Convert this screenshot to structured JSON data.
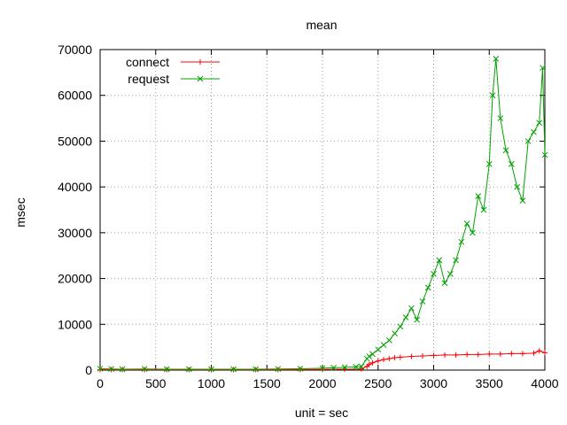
{
  "chart_data": {
    "type": "line",
    "title": "mean",
    "xlabel": "unit = sec",
    "ylabel": "msec",
    "xlim": [
      0,
      4000
    ],
    "ylim": [
      0,
      70000
    ],
    "xticks": [
      "0",
      "500",
      "1000",
      "1500",
      "2000",
      "2500",
      "3000",
      "3500",
      "4000"
    ],
    "yticks": [
      "0",
      "10000",
      "20000",
      "30000",
      "40000",
      "50000",
      "60000",
      "70000"
    ],
    "grid": true,
    "legend_position": "top-left",
    "series": [
      {
        "name": "connect",
        "color": "#ff0000",
        "marker": "plus",
        "x": [
          0,
          100,
          200,
          400,
          600,
          800,
          1000,
          1200,
          1400,
          1600,
          1800,
          2000,
          2200,
          2350,
          2400,
          2420,
          2450,
          2500,
          2550,
          2600,
          2650,
          2700,
          2800,
          2900,
          3000,
          3100,
          3200,
          3300,
          3400,
          3500,
          3600,
          3700,
          3800,
          3900,
          3950,
          4000
        ],
        "values": [
          100,
          100,
          100,
          100,
          100,
          100,
          100,
          100,
          100,
          100,
          120,
          150,
          200,
          250,
          800,
          1200,
          1600,
          2000,
          2300,
          2500,
          2700,
          2800,
          3000,
          3100,
          3200,
          3300,
          3300,
          3400,
          3400,
          3500,
          3500,
          3600,
          3600,
          3700,
          4200,
          3800
        ]
      },
      {
        "name": "request",
        "color": "#00a000",
        "marker": "cross",
        "x": [
          0,
          100,
          200,
          400,
          600,
          800,
          1000,
          1200,
          1400,
          1600,
          1800,
          2000,
          2100,
          2200,
          2300,
          2350,
          2400,
          2420,
          2450,
          2500,
          2550,
          2600,
          2650,
          2700,
          2750,
          2800,
          2850,
          2900,
          2950,
          3000,
          3050,
          3100,
          3150,
          3200,
          3250,
          3300,
          3350,
          3400,
          3450,
          3500,
          3530,
          3560,
          3600,
          3650,
          3700,
          3750,
          3800,
          3850,
          3900,
          3950,
          3980,
          4000
        ],
        "values": [
          300,
          250,
          200,
          250,
          200,
          200,
          200,
          200,
          200,
          250,
          300,
          400,
          500,
          600,
          700,
          800,
          2500,
          3000,
          3500,
          4500,
          5500,
          6500,
          8000,
          9500,
          11500,
          13500,
          11000,
          15000,
          18000,
          21000,
          24000,
          19000,
          21000,
          24000,
          28000,
          32000,
          30000,
          38000,
          35000,
          45000,
          60000,
          68000,
          55000,
          48000,
          45000,
          40000,
          37000,
          50000,
          52000,
          54000,
          66000,
          47000
        ]
      }
    ]
  }
}
